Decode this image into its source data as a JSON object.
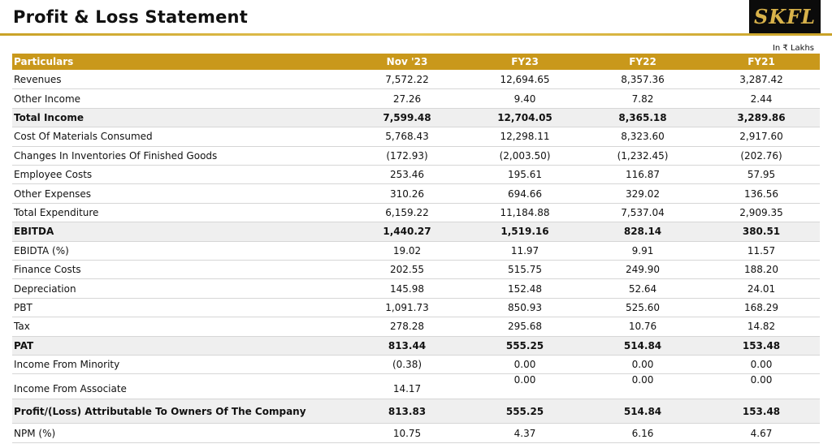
{
  "header": {
    "title": "Profit & Loss Statement",
    "logo": "SKFL",
    "unit_note": "In ₹ Lakhs"
  },
  "table": {
    "columns": [
      "Particulars",
      "Nov '23",
      "FY23",
      "FY22",
      "FY21"
    ],
    "rows": [
      {
        "label": "Revenues",
        "values": [
          "7,572.22",
          "12,694.65",
          "8,357.36",
          "3,287.42"
        ]
      },
      {
        "label": "Other Income",
        "values": [
          "27.26",
          "9.40",
          "7.82",
          "2.44"
        ]
      },
      {
        "label": "Total Income",
        "values": [
          "7,599.48",
          "12,704.05",
          "8,365.18",
          "3,289.86"
        ],
        "highlight": true
      },
      {
        "label": "Cost Of Materials Consumed",
        "values": [
          "5,768.43",
          "12,298.11",
          "8,323.60",
          "2,917.60"
        ]
      },
      {
        "label": "Changes In Inventories Of Finished Goods",
        "values": [
          "(172.93)",
          "(2,003.50)",
          "(1,232.45)",
          "(202.76)"
        ]
      },
      {
        "label": "Employee Costs",
        "values": [
          "253.46",
          "195.61",
          "116.87",
          "57.95"
        ]
      },
      {
        "label": "Other Expenses",
        "values": [
          "310.26",
          "694.66",
          "329.02",
          "136.56"
        ]
      },
      {
        "label": "Total Expenditure",
        "values": [
          "6,159.22",
          "11,184.88",
          "7,537.04",
          "2,909.35"
        ]
      },
      {
        "label": "EBITDA",
        "values": [
          "1,440.27",
          "1,519.16",
          "828.14",
          "380.51"
        ],
        "highlight": true
      },
      {
        "label": "EBIDTA (%)",
        "values": [
          "19.02",
          "11.97",
          "9.91",
          "11.57"
        ]
      },
      {
        "label": "Finance Costs",
        "values": [
          "202.55",
          "515.75",
          "249.90",
          "188.20"
        ]
      },
      {
        "label": "Depreciation",
        "values": [
          "145.98",
          "152.48",
          "52.64",
          "24.01"
        ]
      },
      {
        "label": "PBT",
        "values": [
          "1,091.73",
          "850.93",
          "525.60",
          "168.29"
        ]
      },
      {
        "label": "Tax",
        "values": [
          "278.28",
          "295.68",
          "10.76",
          "14.82"
        ]
      },
      {
        "label": "PAT",
        "values": [
          "813.44",
          "555.25",
          "514.84",
          "153.48"
        ],
        "highlight": true
      },
      {
        "label": "Income From Minority",
        "values": [
          "(0.38)",
          "0.00",
          "0.00",
          "0.00"
        ]
      },
      {
        "label": "Income From Associate",
        "values": [
          "14.17",
          "0.00",
          "0.00",
          "0.00"
        ]
      },
      {
        "label": "Profit/(Loss) Attributable To Owners Of The Company",
        "values": [
          "813.83",
          "555.25",
          "514.84",
          "153.48"
        ],
        "highlight": true
      },
      {
        "label": "NPM (%)",
        "values": [
          "10.75",
          "4.37",
          "6.16",
          "4.67"
        ]
      }
    ]
  }
}
